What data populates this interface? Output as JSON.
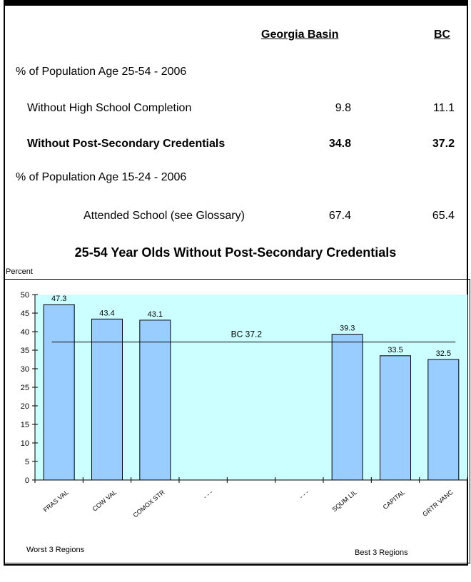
{
  "table": {
    "col_headers": [
      "Georgia Basin",
      "BC"
    ],
    "sections": [
      {
        "label": "% of Population Age 25-54 - 2006",
        "rows": [
          {
            "label": "Without High School Completion",
            "georgia_basin": "9.8",
            "bc": "11.1"
          },
          {
            "label": "Without Post-Secondary Credentials",
            "georgia_basin": "34.8",
            "bc": "37.2"
          }
        ]
      },
      {
        "label": "% of Population Age 15-24 - 2006",
        "rows": [
          {
            "label": "Attended School (see Glossary)",
            "georgia_basin": "67.4",
            "bc": "65.4"
          }
        ]
      }
    ]
  },
  "chart_data": {
    "type": "bar",
    "title": "25-54 Year Olds Without Post-Secondary Credentials",
    "ylabel": "Percent",
    "categories": [
      "FRAS VAL",
      "COW VAL",
      "COMOX STR",
      "- - -",
      "",
      "- - -",
      "SQUM LIL",
      "CAPITAL",
      "GRTR VANC"
    ],
    "values": [
      47.3,
      43.4,
      43.1,
      null,
      null,
      null,
      39.3,
      33.5,
      32.5
    ],
    "value_labels": [
      "47.3",
      "43.4",
      "43.1",
      "",
      "",
      "",
      "39.3",
      "33.5",
      "32.5"
    ],
    "ylim": [
      0,
      50
    ],
    "yticks": [
      "0",
      "5",
      "10",
      "15",
      "20",
      "25",
      "30",
      "35",
      "40",
      "45",
      "50"
    ],
    "reference_line": {
      "value": 37.2,
      "label": "BC 37.2"
    },
    "annotations": {
      "left": "Worst 3 Regions",
      "right": "Best 3 Regions"
    },
    "colors": {
      "plot_bg": "#ccffff",
      "bar_fill": "#99ccff",
      "bar_stroke": "#000000"
    }
  }
}
